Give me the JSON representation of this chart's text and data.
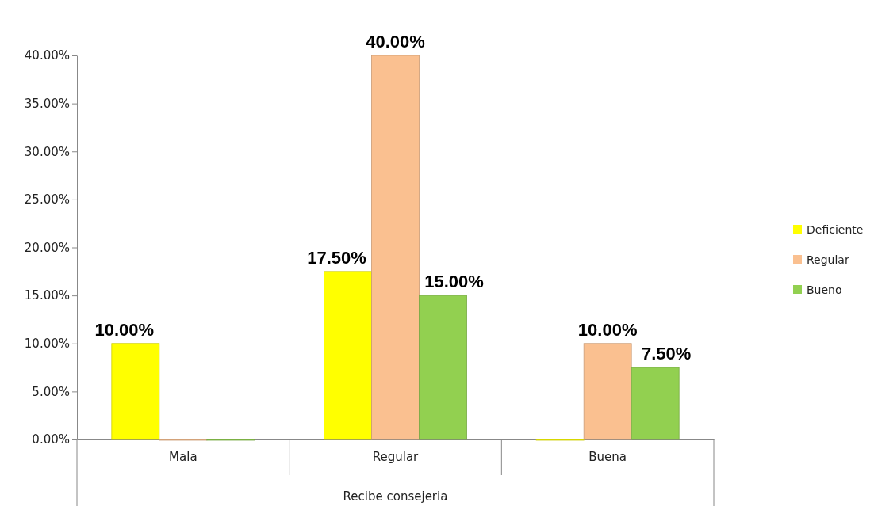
{
  "chart_data": {
    "type": "bar",
    "xlabel": "Recibe consejeria",
    "categories": [
      "Mala",
      "Regular",
      "Buena"
    ],
    "series": [
      {
        "name": "Deficiente",
        "color": "#ffff00",
        "values": [
          10,
          17.5,
          0
        ],
        "value_labels": [
          "10.00%",
          "17.50%",
          null
        ]
      },
      {
        "name": "Regular",
        "color": "#fac090",
        "values": [
          0,
          40,
          10
        ],
        "value_labels": [
          null,
          "40.00%",
          "10.00%"
        ]
      },
      {
        "name": "Bueno",
        "color": "#92d050",
        "values": [
          0,
          15,
          7.5
        ],
        "value_labels": [
          null,
          "15.00%",
          "7.50%"
        ]
      }
    ],
    "ylim": [
      0,
      40
    ],
    "yticks": [
      {
        "value": 0,
        "label": "0.00%"
      },
      {
        "value": 5,
        "label": "5.00%"
      },
      {
        "value": 10,
        "label": "10.00%"
      },
      {
        "value": 15,
        "label": "15.00%"
      },
      {
        "value": 20,
        "label": "20.00%"
      },
      {
        "value": 25,
        "label": "25.00%"
      },
      {
        "value": 30,
        "label": "30.00%"
      },
      {
        "value": 35,
        "label": "35.00%"
      },
      {
        "value": 40,
        "label": "40.00%"
      }
    ],
    "grid": false,
    "legend": "right"
  }
}
